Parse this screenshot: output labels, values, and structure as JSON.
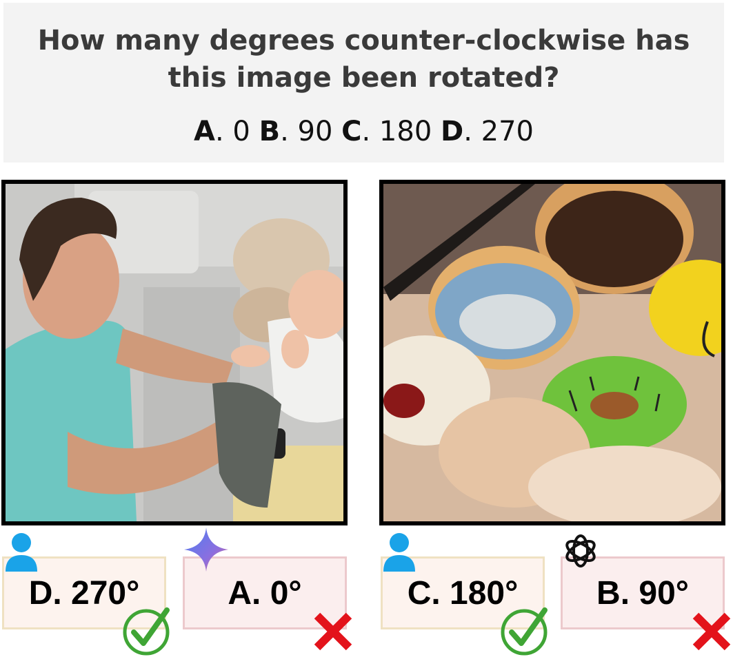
{
  "question": {
    "line1": "How many degrees counter-clockwise has",
    "line2": "this image been rotated?",
    "options": [
      {
        "letter": "A",
        "value": "0"
      },
      {
        "letter": "B",
        "value": "90"
      },
      {
        "letter": "C",
        "value": "180"
      },
      {
        "letter": "D",
        "value": "270"
      }
    ]
  },
  "examples": [
    {
      "image": "man-lifting-baby-photo",
      "human_answer": "D. 270°",
      "model_answer": "A. 0°",
      "model_icon": "gemini-sparkle-icon",
      "human_result": "correct",
      "model_result": "wrong"
    },
    {
      "image": "assorted-donuts-photo",
      "human_answer": "C. 180°",
      "model_answer": "B. 90°",
      "model_icon": "openai-logo-icon",
      "human_result": "correct",
      "model_result": "wrong"
    }
  ],
  "colors": {
    "correct": "#3fa535",
    "wrong": "#e3131b",
    "user_icon": "#1aa3e8",
    "correct_box_border": "#efe1c2",
    "wrong_box_border": "#ecc9cc"
  }
}
